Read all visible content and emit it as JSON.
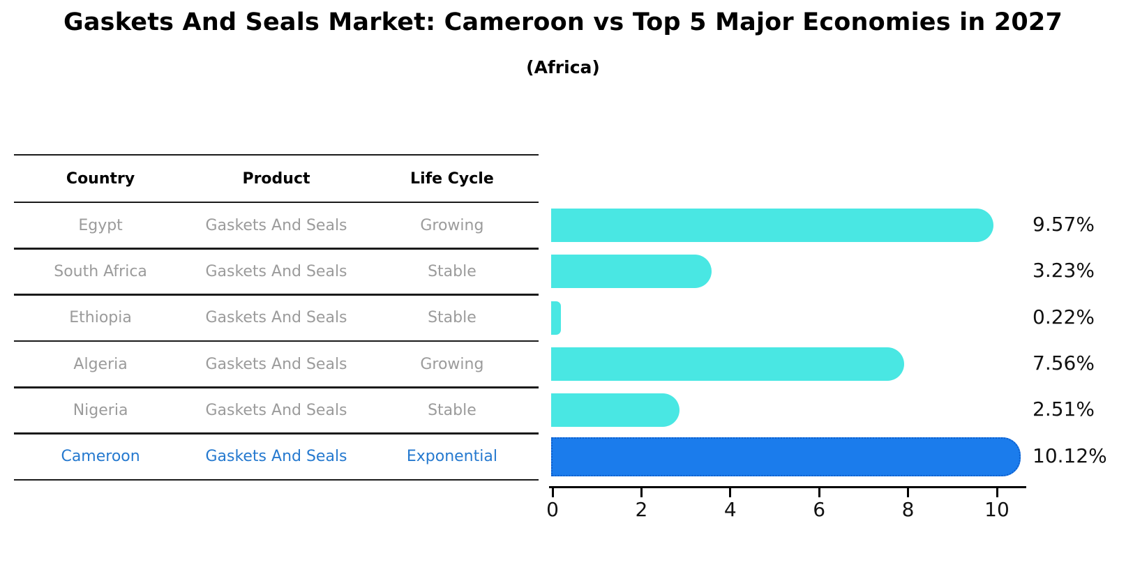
{
  "header": {
    "title": "Gaskets And Seals Market: Cameroon vs Top 5 Major Economies in 2027",
    "subtitle": "(Africa)"
  },
  "table": {
    "columns": [
      "Country",
      "Product",
      "Life Cycle"
    ],
    "rows": [
      {
        "country": "Egypt",
        "product": "Gaskets And Seals",
        "life_cycle": "Growing",
        "highlight": false
      },
      {
        "country": "South Africa",
        "product": "Gaskets And Seals",
        "life_cycle": "Stable",
        "highlight": false
      },
      {
        "country": "Ethiopia",
        "product": "Gaskets And Seals",
        "life_cycle": "Stable",
        "highlight": false
      },
      {
        "country": "Algeria",
        "product": "Gaskets And Seals",
        "life_cycle": "Growing",
        "highlight": false
      },
      {
        "country": "Nigeria",
        "product": "Gaskets And Seals",
        "life_cycle": "Stable",
        "highlight": false
      },
      {
        "country": "Cameroon",
        "product": "Gaskets And Seals",
        "life_cycle": "Exponential",
        "highlight": true
      }
    ]
  },
  "chart_data": {
    "type": "bar",
    "orientation": "horizontal",
    "title": "Gaskets And Seals Market: Cameroon vs Top 5 Major Economies in 2027 (Africa)",
    "categories": [
      "Egypt",
      "South Africa",
      "Ethiopia",
      "Algeria",
      "Nigeria",
      "Cameroon"
    ],
    "values": [
      9.57,
      3.23,
      0.22,
      7.56,
      2.51,
      10.12
    ],
    "value_labels": [
      "9.57%",
      "3.23%",
      "0.22%",
      "7.56%",
      "2.51%",
      "10.12%"
    ],
    "xlabel": "",
    "ylabel": "",
    "xticks": [
      0,
      2,
      4,
      6,
      8,
      10
    ],
    "xlim": [
      0,
      10.7
    ],
    "grid": false,
    "legend": false,
    "bar_color": "#49e7e3",
    "highlight_bar_color": "#1b7cec",
    "highlight_border_color": "#0d5ecc",
    "highlight_index": 5
  },
  "colors": {
    "row_text": "#9b9b9b",
    "highlight_text": "#2579cf",
    "line": "#1a1a1a",
    "text": "#000000"
  }
}
